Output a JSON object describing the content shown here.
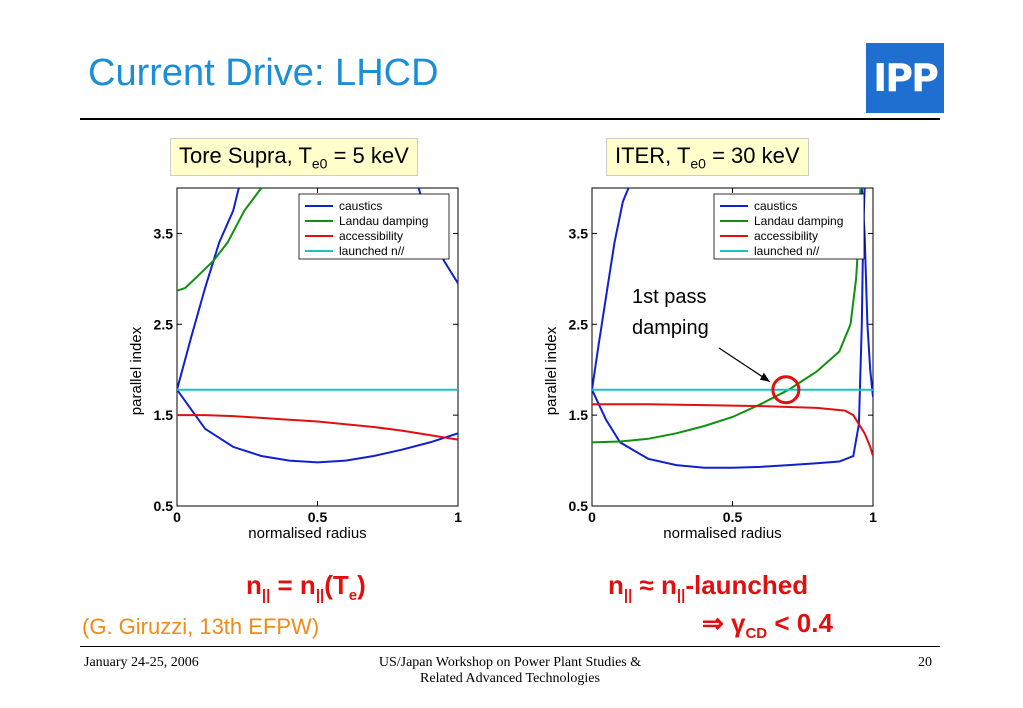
{
  "slide": {
    "title": "Current Drive: LHCD",
    "logo_text": "IPP",
    "citation": "(G. Giruzzi, 13th EFPW)",
    "footer": {
      "date": "January 24-25, 2006",
      "workshop_line1": "US/Japan Workshop on Power Plant Studies &",
      "workshop_line2": "Related Advanced Technologies",
      "page": "20"
    }
  },
  "labels": {
    "left": {
      "pre": "Tore Supra, T",
      "sub": "e0",
      "post": " = 5 keV"
    },
    "right": {
      "pre": "ITER, T",
      "sub": "e0",
      "post": " = 30 keV"
    }
  },
  "formulas": {
    "left": {
      "a": "n",
      "a_sub": "||",
      "eq": " = n",
      "b_sub": "||",
      "c": "(T",
      "c_sub": "e",
      "d": ")"
    },
    "right_line1": {
      "a": "n",
      "a_sub": "||",
      "mid": " ≈ n",
      "b_sub": "||",
      "end": "-launched"
    },
    "right_line2": {
      "arrow": "⇒ γ",
      "sub": "CD",
      "end": " < 0.4"
    }
  },
  "colors": {
    "caustics": "#1020d0",
    "landau": "#109010",
    "accessibility": "#e01010",
    "launched": "#20c0c0",
    "title": "#1a8fd6",
    "highlight": "#e01010"
  },
  "chart_data": [
    {
      "type": "line",
      "xlabel": "normalised radius",
      "ylabel": "parallel index",
      "xlim": [
        0,
        1
      ],
      "ylim": [
        0.5,
        4
      ],
      "xticks": [
        "0",
        "0.5",
        "1"
      ],
      "yticks": [
        "0.5",
        "1.5",
        "2.5",
        "3.5"
      ],
      "legend": "top-right",
      "series": [
        {
          "name": "caustics",
          "segments": [
            [
              [
                0,
                1.78
              ],
              [
                0.05,
                2.35
              ],
              [
                0.1,
                2.9
              ],
              [
                0.15,
                3.4
              ],
              [
                0.2,
                3.75
              ],
              [
                0.22,
                4.0
              ]
            ],
            [
              [
                0,
                1.78
              ],
              [
                0.1,
                1.35
              ],
              [
                0.2,
                1.15
              ],
              [
                0.3,
                1.05
              ],
              [
                0.4,
                1.0
              ],
              [
                0.5,
                0.98
              ],
              [
                0.6,
                1.0
              ],
              [
                0.7,
                1.05
              ],
              [
                0.8,
                1.12
              ],
              [
                0.9,
                1.2
              ],
              [
                1,
                1.3
              ]
            ],
            [
              [
                0.86,
                4.0
              ],
              [
                0.9,
                3.55
              ],
              [
                0.95,
                3.2
              ],
              [
                1,
                2.95
              ]
            ]
          ]
        },
        {
          "name": "Landau damping",
          "segments": [
            [
              [
                0,
                2.87
              ],
              [
                0.03,
                2.9
              ],
              [
                0.08,
                3.05
              ],
              [
                0.13,
                3.2
              ],
              [
                0.18,
                3.4
              ],
              [
                0.24,
                3.75
              ],
              [
                0.3,
                4.0
              ]
            ]
          ]
        },
        {
          "name": "accessibility",
          "segments": [
            [
              [
                0,
                1.5
              ],
              [
                0.1,
                1.5
              ],
              [
                0.2,
                1.49
              ],
              [
                0.3,
                1.47
              ],
              [
                0.4,
                1.45
              ],
              [
                0.5,
                1.43
              ],
              [
                0.6,
                1.4
              ],
              [
                0.7,
                1.37
              ],
              [
                0.8,
                1.33
              ],
              [
                0.9,
                1.28
              ],
              [
                1,
                1.23
              ]
            ]
          ]
        },
        {
          "name": "launched n//",
          "segments": [
            [
              [
                0,
                1.78
              ],
              [
                1,
                1.78
              ]
            ]
          ]
        }
      ]
    },
    {
      "type": "line",
      "xlabel": "normalised radius",
      "ylabel": "parallel index",
      "xlim": [
        0,
        1
      ],
      "ylim": [
        0.5,
        4
      ],
      "xticks": [
        "0",
        "0.5",
        "1"
      ],
      "yticks": [
        "0.5",
        "1.5",
        "2.5",
        "3.5"
      ],
      "legend": "top-right",
      "annotation": {
        "text_line1": "1st pass",
        "text_line2": "damping",
        "x": 0.69,
        "y": 1.78
      },
      "series": [
        {
          "name": "caustics",
          "segments": [
            [
              [
                0,
                1.78
              ],
              [
                0.02,
                2.2
              ],
              [
                0.05,
                2.8
              ],
              [
                0.08,
                3.4
              ],
              [
                0.11,
                3.85
              ],
              [
                0.13,
                4.0
              ]
            ],
            [
              [
                0,
                1.78
              ],
              [
                0.05,
                1.45
              ],
              [
                0.1,
                1.2
              ],
              [
                0.2,
                1.02
              ],
              [
                0.3,
                0.95
              ],
              [
                0.4,
                0.92
              ],
              [
                0.5,
                0.92
              ],
              [
                0.6,
                0.93
              ],
              [
                0.7,
                0.95
              ],
              [
                0.8,
                0.97
              ],
              [
                0.88,
                0.99
              ],
              [
                0.93,
                1.05
              ],
              [
                0.95,
                1.4
              ],
              [
                0.96,
                2.5
              ],
              [
                0.965,
                3.5
              ],
              [
                0.97,
                4.0
              ]
            ],
            [
              [
                0.96,
                4.0
              ],
              [
                0.97,
                3.5
              ],
              [
                0.98,
                2.5
              ],
              [
                0.99,
                2.0
              ],
              [
                1,
                1.7
              ]
            ]
          ]
        },
        {
          "name": "Landau damping",
          "segments": [
            [
              [
                0,
                1.2
              ],
              [
                0.1,
                1.21
              ],
              [
                0.2,
                1.24
              ],
              [
                0.3,
                1.3
              ],
              [
                0.4,
                1.38
              ],
              [
                0.5,
                1.48
              ],
              [
                0.6,
                1.62
              ],
              [
                0.7,
                1.78
              ],
              [
                0.8,
                1.98
              ],
              [
                0.88,
                2.2
              ],
              [
                0.92,
                2.5
              ],
              [
                0.94,
                3.0
              ],
              [
                0.95,
                3.5
              ],
              [
                0.955,
                4.0
              ]
            ]
          ]
        },
        {
          "name": "accessibility",
          "segments": [
            [
              [
                0,
                1.62
              ],
              [
                0.2,
                1.62
              ],
              [
                0.4,
                1.61
              ],
              [
                0.6,
                1.6
              ],
              [
                0.8,
                1.58
              ],
              [
                0.9,
                1.55
              ],
              [
                0.93,
                1.5
              ],
              [
                0.95,
                1.4
              ],
              [
                0.97,
                1.3
              ],
              [
                0.99,
                1.15
              ],
              [
                1,
                1.05
              ]
            ]
          ]
        },
        {
          "name": "launched n//",
          "segments": [
            [
              [
                0,
                1.78
              ],
              [
                1,
                1.78
              ]
            ]
          ]
        }
      ]
    }
  ]
}
